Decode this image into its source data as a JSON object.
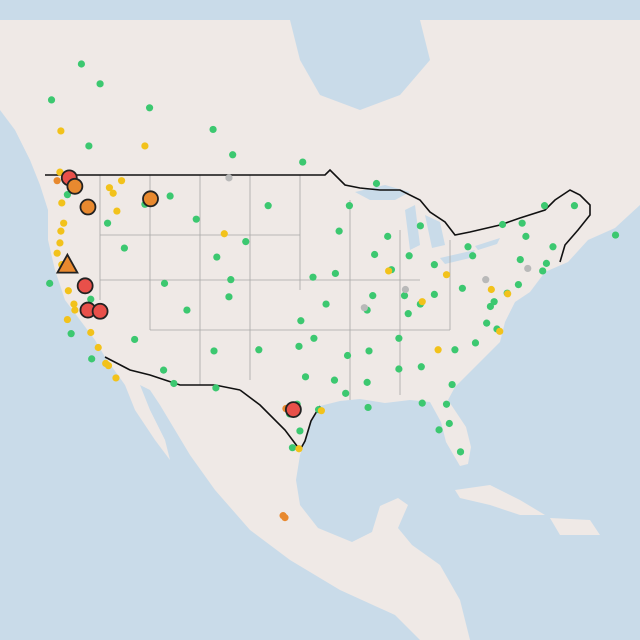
{
  "map": {
    "projection": "mercator",
    "level_colors": [
      "#b9b9b9",
      "#3cc870",
      "#f2c21b",
      "#e8892f",
      "#e8504a"
    ],
    "monitors": [
      [
        47.6,
        -122.3,
        1
      ],
      [
        46.6,
        -120.5,
        1
      ],
      [
        45.5,
        -118.0,
        1
      ],
      [
        43.6,
        -116.2,
        1
      ],
      [
        46.9,
        -114.0,
        1
      ],
      [
        45.8,
        -108.5,
        1
      ],
      [
        46.8,
        -100.8,
        1
      ],
      [
        44.1,
        -103.2,
        1
      ],
      [
        41.1,
        -104.8,
        1
      ],
      [
        39.7,
        -105.0,
        1
      ],
      [
        40.8,
        -111.9,
        1
      ],
      [
        38.6,
        -109.5,
        1
      ],
      [
        35.1,
        -106.6,
        1
      ],
      [
        33.4,
        -112.0,
        1
      ],
      [
        32.2,
        -110.9,
        1
      ],
      [
        31.8,
        -106.4,
        1
      ],
      [
        35.2,
        -101.8,
        1
      ],
      [
        32.8,
        -96.8,
        1
      ],
      [
        29.8,
        -95.4,
        1
      ],
      [
        30.3,
        -97.7,
        1
      ],
      [
        29.4,
        -98.5,
        1
      ],
      [
        35.5,
        -97.5,
        1
      ],
      [
        37.7,
        -97.3,
        1
      ],
      [
        39.1,
        -94.6,
        1
      ],
      [
        41.3,
        -96.0,
        1
      ],
      [
        41.6,
        -93.6,
        1
      ],
      [
        44.9,
        -93.2,
        1
      ],
      [
        46.8,
        -92.1,
        1
      ],
      [
        43.1,
        -89.4,
        1
      ],
      [
        41.9,
        -87.6,
        1
      ],
      [
        39.8,
        -89.6,
        1
      ],
      [
        38.6,
        -90.2,
        1
      ],
      [
        36.2,
        -86.8,
        1
      ],
      [
        35.1,
        -90.0,
        1
      ],
      [
        32.3,
        -90.2,
        1
      ],
      [
        30.0,
        -90.1,
        1
      ],
      [
        33.5,
        -86.8,
        1
      ],
      [
        33.7,
        -84.4,
        1
      ],
      [
        32.1,
        -81.1,
        1
      ],
      [
        30.3,
        -81.7,
        1
      ],
      [
        28.5,
        -81.4,
        1
      ],
      [
        27.9,
        -82.5,
        1
      ],
      [
        25.8,
        -80.2,
        1
      ],
      [
        30.4,
        -84.3,
        1
      ],
      [
        35.2,
        -80.8,
        1
      ],
      [
        35.8,
        -78.6,
        1
      ],
      [
        37.5,
        -77.4,
        1
      ],
      [
        38.9,
        -77.0,
        1
      ],
      [
        39.3,
        -76.6,
        1
      ],
      [
        40.0,
        -75.2,
        1
      ],
      [
        40.7,
        -74.0,
        1
      ],
      [
        42.4,
        -71.0,
        1
      ],
      [
        41.8,
        -71.4,
        1
      ],
      [
        43.7,
        -70.3,
        1
      ],
      [
        44.5,
        -73.2,
        1
      ],
      [
        42.7,
        -73.8,
        1
      ],
      [
        43.0,
        -78.9,
        1
      ],
      [
        40.4,
        -80.0,
        1
      ],
      [
        39.9,
        -83.0,
        1
      ],
      [
        39.1,
        -84.5,
        1
      ],
      [
        42.3,
        -83.0,
        1
      ],
      [
        43.0,
        -85.7,
        1
      ],
      [
        38.3,
        -85.8,
        1
      ],
      [
        39.8,
        -86.2,
        1
      ],
      [
        37.0,
        -76.3,
        1
      ],
      [
        46.8,
        -68.0,
        1
      ],
      [
        45.3,
        -84.5,
        1
      ],
      [
        44.5,
        -88.0,
        1
      ],
      [
        47.5,
        -111.3,
        1
      ],
      [
        42.9,
        -106.3,
        1
      ],
      [
        36.1,
        -115.1,
        1
      ],
      [
        39.5,
        -119.8,
        1
      ],
      [
        34.7,
        -92.3,
        1
      ],
      [
        36.2,
        -95.9,
        1
      ],
      [
        31.3,
        -92.5,
        1
      ],
      [
        27.8,
        -97.4,
        1
      ],
      [
        26.2,
        -98.2,
        1
      ],
      [
        32.5,
        -93.7,
        1
      ],
      [
        40.8,
        -124.2,
        1
      ],
      [
        34.4,
        -119.7,
        1
      ],
      [
        36.6,
        -121.9,
        1
      ],
      [
        53.5,
        -113.5,
        1
      ],
      [
        50.4,
        -104.6,
        1
      ],
      [
        49.9,
        -97.1,
        1
      ],
      [
        52.1,
        -106.7,
        1
      ],
      [
        55.0,
        -118.8,
        1
      ],
      [
        45.4,
        -75.7,
        1
      ],
      [
        46.8,
        -71.2,
        1
      ],
      [
        45.5,
        -73.6,
        1
      ],
      [
        43.7,
        -79.4,
        1
      ],
      [
        44.6,
        -63.6,
        1
      ],
      [
        46.2,
        -60.2,
        1
      ],
      [
        48.4,
        -89.2,
        1
      ],
      [
        51.0,
        -120.0,
        1
      ],
      [
        54.0,
        -124.0,
        1
      ],
      [
        56.2,
        -120.8,
        1
      ],
      [
        45.5,
        -122.7,
        2
      ],
      [
        44.9,
        -123.0,
        2
      ],
      [
        44.0,
        -123.1,
        2
      ],
      [
        42.3,
        -122.9,
        2
      ],
      [
        47.7,
        -117.4,
        2
      ],
      [
        48.1,
        -117.8,
        2
      ],
      [
        46.4,
        -117.0,
        2
      ],
      [
        38.6,
        -121.5,
        2
      ],
      [
        39.1,
        -121.6,
        2
      ],
      [
        40.2,
        -122.2,
        2
      ],
      [
        37.8,
        -122.3,
        2
      ],
      [
        36.7,
        -119.8,
        2
      ],
      [
        35.4,
        -119.0,
        2
      ],
      [
        34.0,
        -118.2,
        2
      ],
      [
        33.8,
        -117.9,
        2
      ],
      [
        32.7,
        -117.1,
        2
      ],
      [
        39.95,
        -75.15,
        2
      ],
      [
        41.5,
        -81.7,
        2
      ],
      [
        39.3,
        -84.3,
        2
      ],
      [
        40.3,
        -76.9,
        2
      ],
      [
        36.8,
        -76.0,
        2
      ],
      [
        41.8,
        -87.9,
        2
      ],
      [
        29.7,
        -95.1,
        2
      ],
      [
        26.1,
        -97.5,
        2
      ],
      [
        35.2,
        -82.6,
        2
      ],
      [
        44.7,
        -105.5,
        2
      ],
      [
        52.0,
        -123.0,
        2
      ],
      [
        51.0,
        -114.0,
        2
      ],
      [
        49.2,
        -123.1,
        2
      ],
      [
        48.6,
        -116.5,
        2
      ],
      [
        47.0,
        -122.9,
        2
      ],
      [
        43.2,
        -123.4,
        2
      ],
      [
        19.5,
        -99.2,
        3
      ],
      [
        19.3,
        -99.0,
        3
      ],
      [
        48.6,
        -123.4,
        3
      ],
      [
        29.9,
        -98.9,
        3
      ],
      [
        48.8,
        -105.0,
        0
      ],
      [
        38.8,
        -90.5,
        0
      ],
      [
        40.3,
        -86.1,
        0
      ],
      [
        41.1,
        -77.5,
        0
      ],
      [
        42.0,
        -73.0,
        0
      ]
    ],
    "sites": [
      {
        "lat": 48.8,
        "lon": -122.1,
        "level": 4,
        "shape": "circle"
      },
      {
        "lat": 48.2,
        "lon": -121.5,
        "level": 3,
        "shape": "circle"
      },
      {
        "lat": 46.7,
        "lon": -120.1,
        "level": 3,
        "shape": "circle"
      },
      {
        "lat": 47.3,
        "lon": -113.4,
        "level": 3,
        "shape": "circle"
      },
      {
        "lat": 42.3,
        "lon": -122.3,
        "level": 3,
        "shape": "triangle"
      },
      {
        "lat": 40.6,
        "lon": -120.4,
        "level": 4,
        "shape": "circle"
      },
      {
        "lat": 38.6,
        "lon": -120.1,
        "level": 4,
        "shape": "circle"
      },
      {
        "lat": 38.5,
        "lon": -118.8,
        "level": 4,
        "shape": "circle"
      },
      {
        "lat": 29.8,
        "lon": -98.1,
        "level": 4,
        "shape": "circle"
      }
    ]
  }
}
